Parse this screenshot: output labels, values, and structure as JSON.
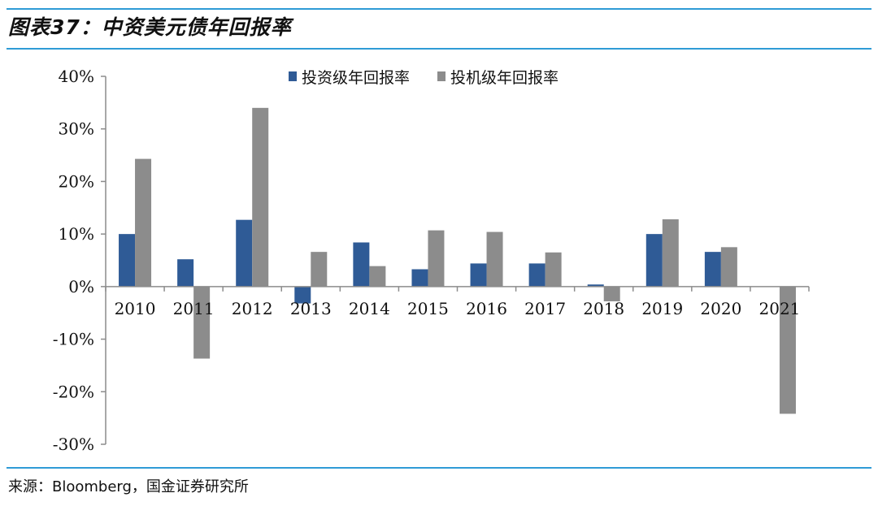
{
  "header": {
    "title": "图表37：中资美元债年回报率"
  },
  "footer": {
    "source": "来源：Bloomberg，国金证券研究所"
  },
  "colors": {
    "accent_rule": "#2f9bd6",
    "series_ig": "#2f5b96",
    "series_hy": "#8c8c8c",
    "axis": "#8c8c8c"
  },
  "chart_data": {
    "type": "bar",
    "title": "图表37：中资美元债年回报率",
    "xlabel": "",
    "ylabel": "",
    "ylim": [
      -30,
      40
    ],
    "yticks": [
      40,
      30,
      20,
      10,
      0,
      -10,
      -20,
      -30
    ],
    "ytick_labels": [
      "40%",
      "30%",
      "20%",
      "10%",
      "0%",
      "-10%",
      "-20%",
      "-30%"
    ],
    "unit": "%",
    "categories": [
      "2010",
      "2011",
      "2012",
      "2013",
      "2014",
      "2015",
      "2016",
      "2017",
      "2018",
      "2019",
      "2020",
      "2021"
    ],
    "series": [
      {
        "name": "投资级年回报率",
        "color": "#2f5b96",
        "values": [
          10.0,
          5.2,
          12.7,
          -3.2,
          8.4,
          3.3,
          4.4,
          4.4,
          0.4,
          10.0,
          6.6,
          0.0
        ]
      },
      {
        "name": "投机级年回报率",
        "color": "#8c8c8c",
        "values": [
          24.3,
          -13.7,
          34.0,
          6.6,
          3.9,
          10.7,
          10.4,
          6.5,
          -2.8,
          12.8,
          7.5,
          -24.2
        ]
      }
    ],
    "legend_position": "top"
  }
}
